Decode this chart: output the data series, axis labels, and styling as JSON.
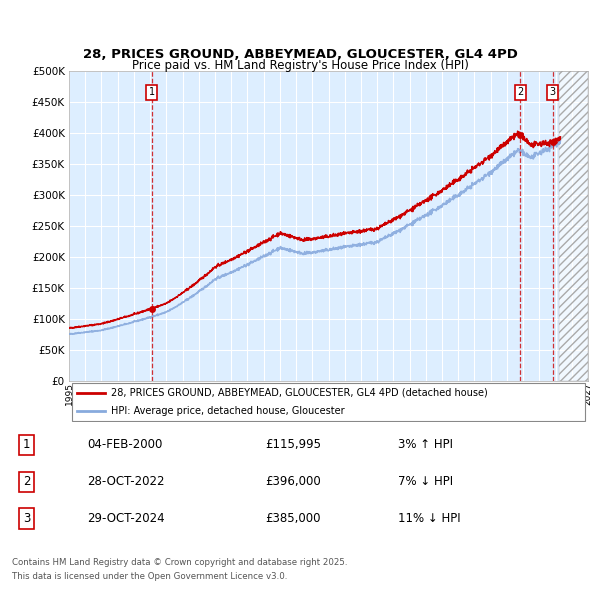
{
  "title_line1": "28, PRICES GROUND, ABBEYMEAD, GLOUCESTER, GL4 4PD",
  "title_line2": "Price paid vs. HM Land Registry's House Price Index (HPI)",
  "xlim_start": 1995.0,
  "xlim_end": 2027.0,
  "ylim_min": 0,
  "ylim_max": 500000,
  "ytick_step": 50000,
  "background_color": "#ffffff",
  "chart_bg_color": "#ddeeff",
  "grid_color": "#ffffff",
  "sale_marker_color": "#cc0000",
  "sale_line_color": "#cc0000",
  "hpi_line_color": "#88aadd",
  "price_line_color": "#cc0000",
  "annotation_box_color": "#cc0000",
  "legend_text_1": "28, PRICES GROUND, ABBEYMEAD, GLOUCESTER, GL4 4PD (detached house)",
  "legend_text_2": "HPI: Average price, detached house, Gloucester",
  "sales": [
    {
      "num": 1,
      "date_dec": 2000.09,
      "price": 115995,
      "label": "04-FEB-2000",
      "pct": "3%",
      "dir": "↑"
    },
    {
      "num": 2,
      "date_dec": 2022.82,
      "price": 396000,
      "label": "28-OCT-2022",
      "pct": "7%",
      "dir": "↓"
    },
    {
      "num": 3,
      "date_dec": 2024.83,
      "price": 385000,
      "label": "29-OCT-2024",
      "pct": "11%",
      "dir": "↓"
    }
  ],
  "footnote_line1": "Contains HM Land Registry data © Crown copyright and database right 2025.",
  "footnote_line2": "This data is licensed under the Open Government Licence v3.0.",
  "future_start": 2025.2,
  "hpi_base": 75000,
  "hpi_start": 1995.0,
  "hpi_end": 2025.3,
  "noise_seed": 42
}
